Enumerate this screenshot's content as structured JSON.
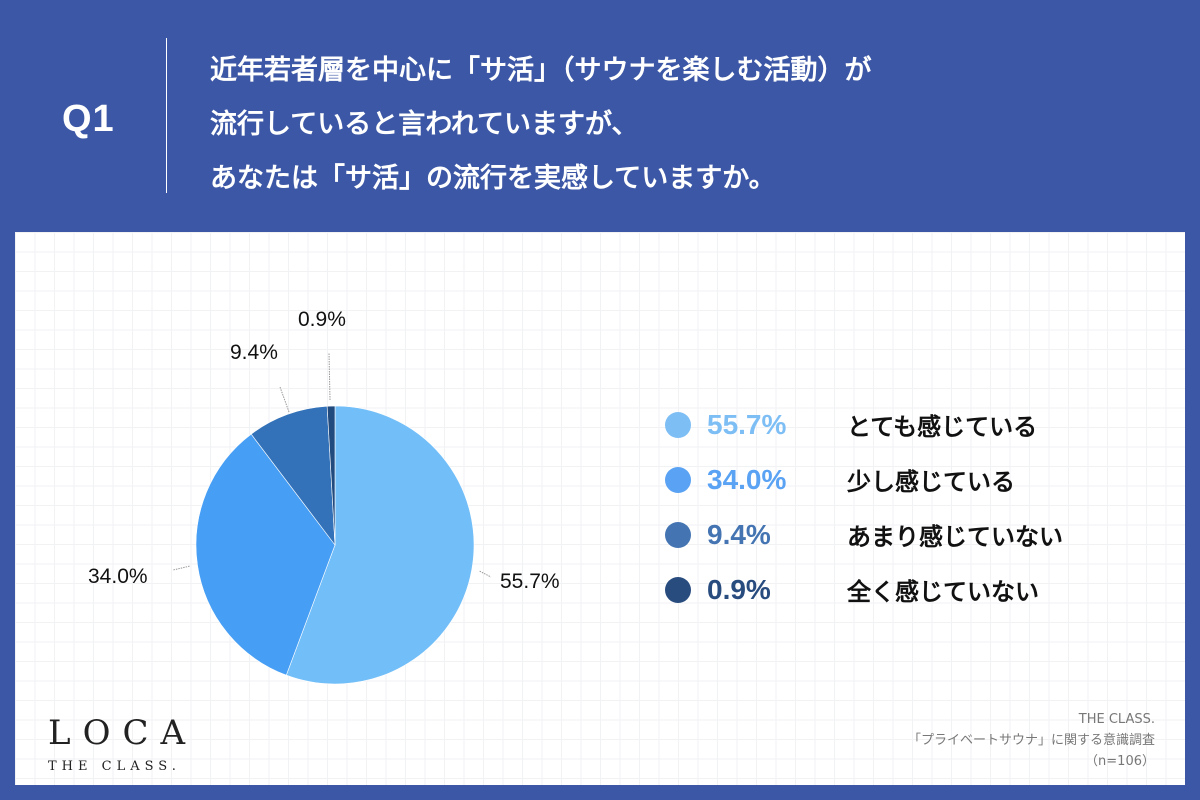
{
  "header": {
    "q_label": "Q1",
    "question_lines": [
      "近年若者層を中心に「サ活」（サウナを楽しむ活動）が",
      "流行していると言われていますが、",
      "あなたは「サ活」の流行を実感していますか。"
    ],
    "background_color": "#3C57A5"
  },
  "chart_data": {
    "type": "pie",
    "title": "近年若者層を中心に「サ活」（サウナを楽しむ活動）が流行していると言われていますが、あなたは「サ活」の流行を実感していますか。",
    "start_angle": "12 o'clock, clockwise",
    "categories": [
      "とても感じている",
      "少し感じている",
      "あまり感じていない",
      "全く感じていない"
    ],
    "values": [
      55.7,
      34.0,
      9.4,
      0.9
    ],
    "value_labels": [
      "55.7%",
      "34.0%",
      "9.4%",
      "0.9%"
    ],
    "colors": [
      "#72BEF8",
      "#479FF5",
      "#3372B8",
      "#214A7E"
    ],
    "legend_position": "right",
    "n": 106
  },
  "legend": [
    {
      "pct": "55.7%",
      "label": "とても感じている",
      "dot_color": "#7DBEF5",
      "pct_color": "#7DBEF5"
    },
    {
      "pct": "34.0%",
      "label": "少し感じている",
      "dot_color": "#5AA2F3",
      "pct_color": "#5AA2F3"
    },
    {
      "pct": "9.4%",
      "label": "あまり感じていない",
      "dot_color": "#4475B2",
      "pct_color": "#4475B2"
    },
    {
      "pct": "0.9%",
      "label": "全く感じていない",
      "dot_color": "#294C7F",
      "pct_color": "#294C7F"
    }
  ],
  "pie_labels": [
    "55.7%",
    "34.0%",
    "9.4%",
    "0.9%"
  ],
  "logo": {
    "main": "LOCA",
    "sub": "THE CLASS."
  },
  "source": {
    "line1": "THE CLASS.",
    "line2": "「プライベートサウナ」に関する意識調査",
    "line3": "（n=106）"
  }
}
